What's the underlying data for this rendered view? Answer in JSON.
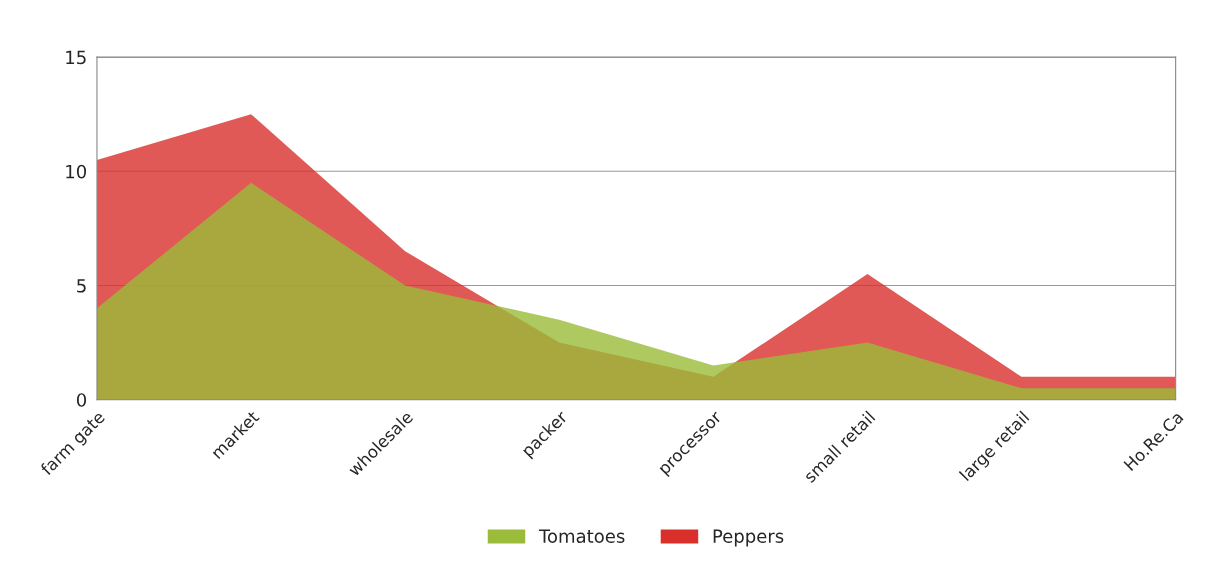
{
  "chart_data": {
    "type": "area",
    "categories": [
      "farm gate",
      "market",
      "wholesale",
      "packer",
      "processor",
      "small retail",
      "large retail",
      "Ho.Re.Ca"
    ],
    "series": [
      {
        "name": "Tomatoes",
        "color": "#9bbb3a",
        "values": [
          4,
          9.5,
          5,
          3.5,
          1.5,
          2.5,
          0.5,
          0.5
        ]
      },
      {
        "name": "Peppers",
        "color": "#d9302c",
        "values": [
          10.5,
          12.5,
          6.5,
          2.5,
          1,
          5.5,
          1,
          1
        ]
      }
    ],
    "ylim": [
      0,
      15
    ],
    "yticks": [
      0,
      5,
      10,
      15
    ],
    "grid": "y",
    "legend": "bottom"
  }
}
